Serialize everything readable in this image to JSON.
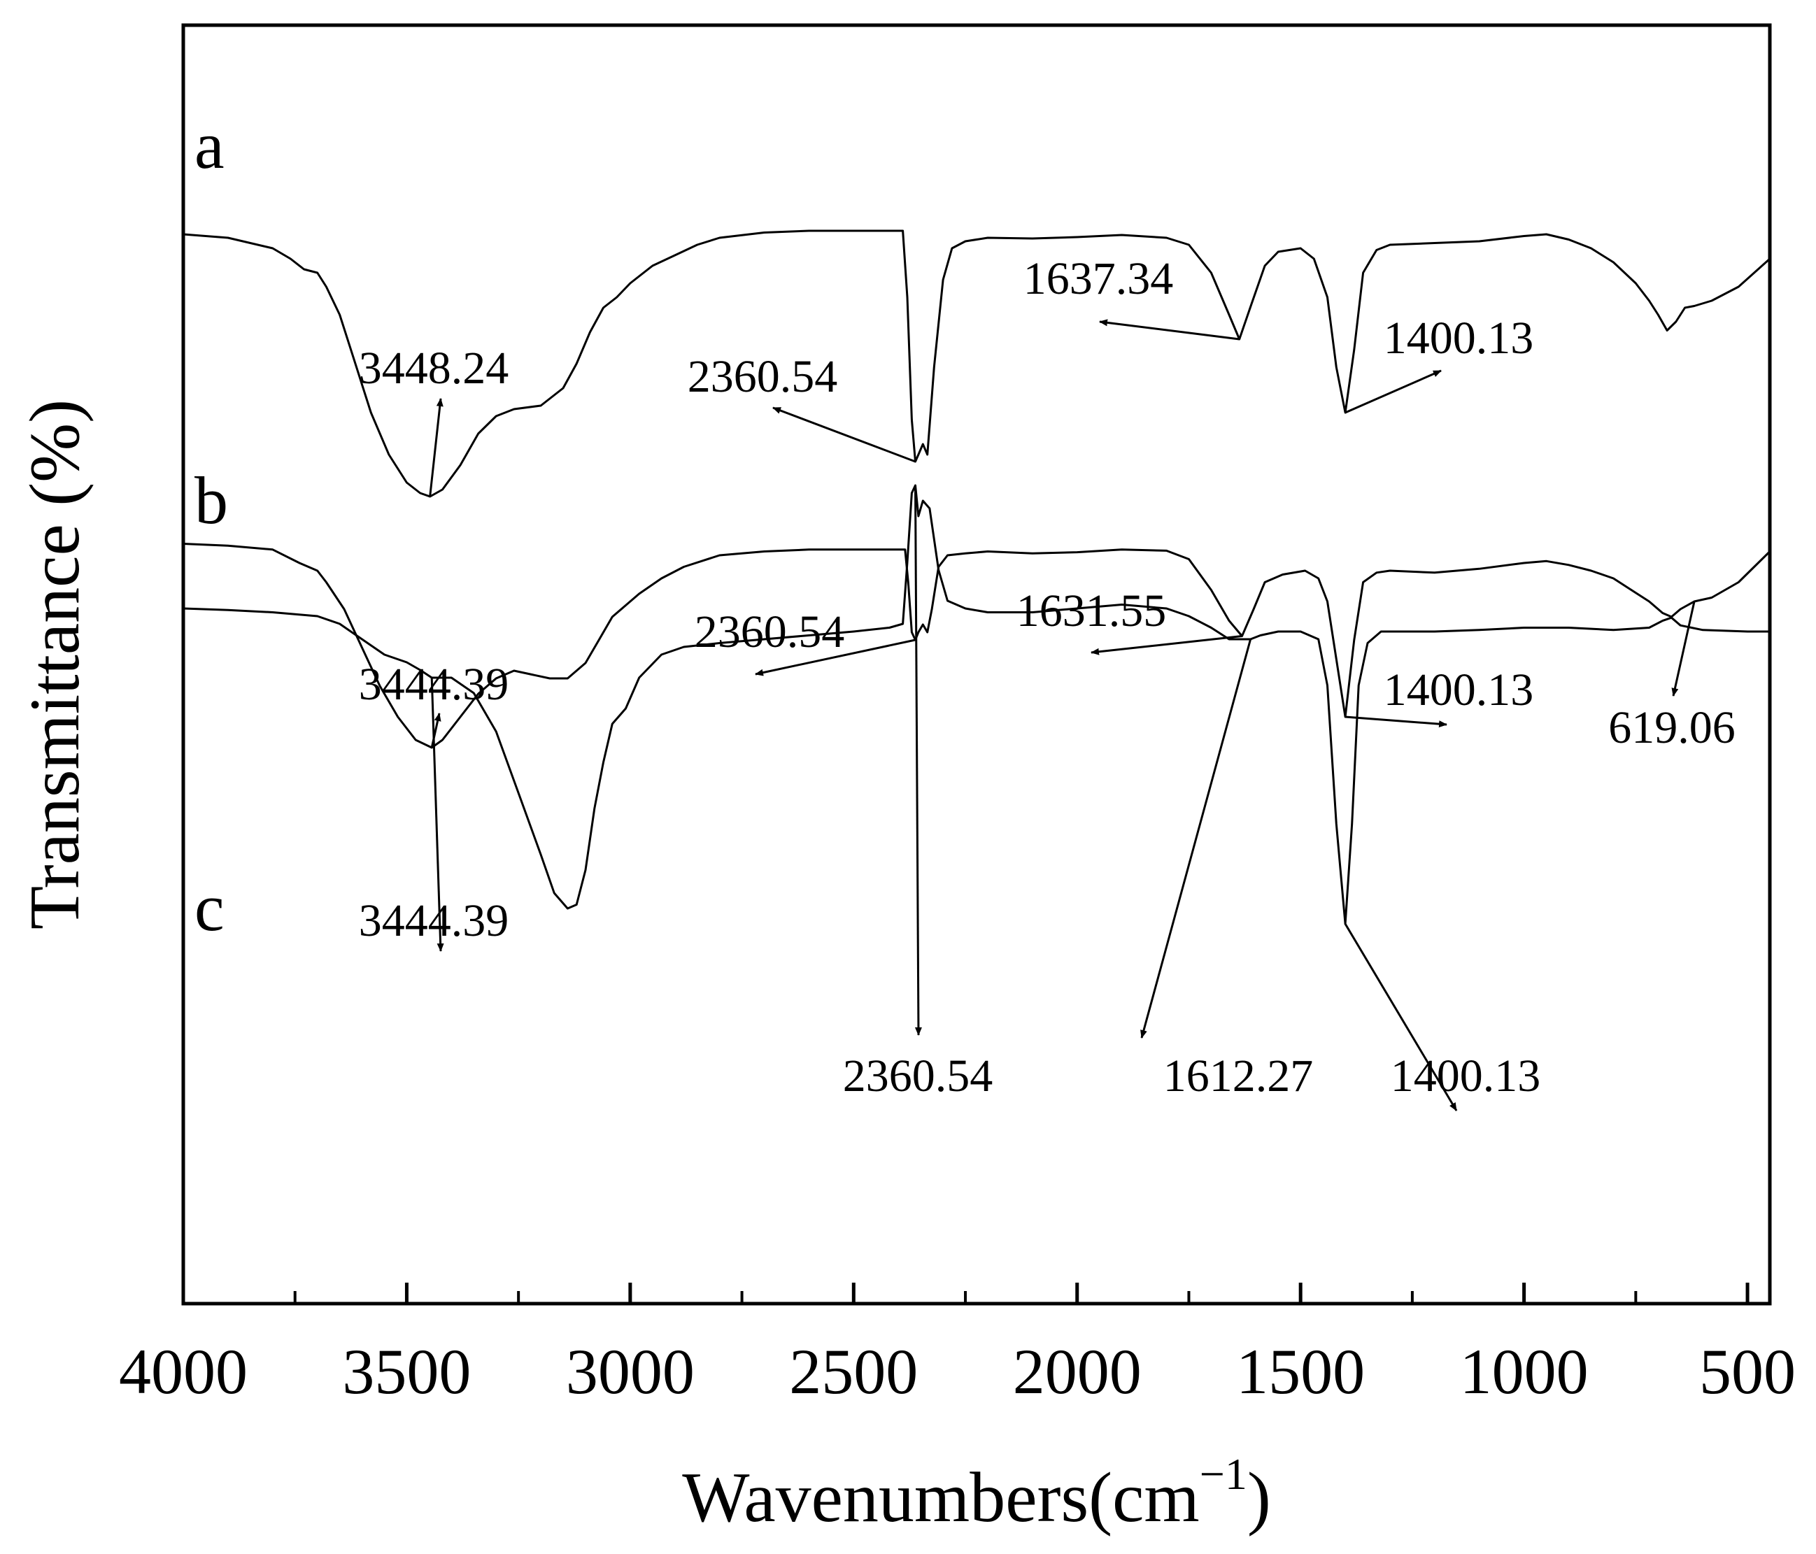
{
  "chart_data": {
    "type": "line",
    "xlabel": "Wavenumbers(cm",
    "xlabel_superscript": "−1",
    "xlabel_suffix": ")",
    "ylabel": "Transmittance (%)",
    "xlim": [
      4000,
      450
    ],
    "x_reversed": true,
    "x_ticks": [
      4000,
      3500,
      3000,
      2500,
      2000,
      1500,
      1000,
      500
    ],
    "x_tick_labels": [
      "4000",
      "3500",
      "3000",
      "2500",
      "2000",
      "1500",
      "1000",
      "500"
    ],
    "grid": false,
    "line_color": "#000000",
    "series": [
      {
        "name": "a",
        "points": [
          [
            4000,
            0.93
          ],
          [
            3900,
            0.92
          ],
          [
            3800,
            0.89
          ],
          [
            3760,
            0.86
          ],
          [
            3730,
            0.83
          ],
          [
            3700,
            0.82
          ],
          [
            3680,
            0.78
          ],
          [
            3650,
            0.7
          ],
          [
            3620,
            0.58
          ],
          [
            3580,
            0.42
          ],
          [
            3540,
            0.3
          ],
          [
            3500,
            0.22
          ],
          [
            3470,
            0.19
          ],
          [
            3448,
            0.18
          ],
          [
            3420,
            0.2
          ],
          [
            3380,
            0.27
          ],
          [
            3340,
            0.36
          ],
          [
            3300,
            0.41
          ],
          [
            3260,
            0.43
          ],
          [
            3200,
            0.44
          ],
          [
            3150,
            0.49
          ],
          [
            3120,
            0.56
          ],
          [
            3090,
            0.65
          ],
          [
            3060,
            0.72
          ],
          [
            3030,
            0.75
          ],
          [
            3000,
            0.79
          ],
          [
            2950,
            0.84
          ],
          [
            2900,
            0.87
          ],
          [
            2850,
            0.9
          ],
          [
            2800,
            0.92
          ],
          [
            2700,
            0.935
          ],
          [
            2600,
            0.94
          ],
          [
            2450,
            0.94
          ],
          [
            2390,
            0.94
          ],
          [
            2380,
            0.75
          ],
          [
            2370,
            0.4
          ],
          [
            2362,
            0.28
          ],
          [
            2355,
            0.3
          ],
          [
            2345,
            0.33
          ],
          [
            2335,
            0.3
          ],
          [
            2320,
            0.55
          ],
          [
            2300,
            0.8
          ],
          [
            2280,
            0.89
          ],
          [
            2250,
            0.91
          ],
          [
            2200,
            0.92
          ],
          [
            2100,
            0.918
          ],
          [
            2000,
            0.922
          ],
          [
            1900,
            0.928
          ],
          [
            1800,
            0.92
          ],
          [
            1750,
            0.9
          ],
          [
            1700,
            0.82
          ],
          [
            1660,
            0.7
          ],
          [
            1637,
            0.63
          ],
          [
            1610,
            0.73
          ],
          [
            1580,
            0.84
          ],
          [
            1550,
            0.88
          ],
          [
            1500,
            0.89
          ],
          [
            1470,
            0.86
          ],
          [
            1440,
            0.75
          ],
          [
            1420,
            0.55
          ],
          [
            1400,
            0.42
          ],
          [
            1380,
            0.6
          ],
          [
            1360,
            0.82
          ],
          [
            1330,
            0.885
          ],
          [
            1300,
            0.9
          ],
          [
            1200,
            0.905
          ],
          [
            1100,
            0.91
          ],
          [
            1000,
            0.925
          ],
          [
            950,
            0.93
          ],
          [
            900,
            0.915
          ],
          [
            850,
            0.89
          ],
          [
            800,
            0.85
          ],
          [
            750,
            0.79
          ],
          [
            720,
            0.74
          ],
          [
            700,
            0.7
          ],
          [
            680,
            0.655
          ],
          [
            660,
            0.68
          ],
          [
            640,
            0.72
          ],
          [
            619,
            0.725
          ],
          [
            580,
            0.74
          ],
          [
            520,
            0.78
          ],
          [
            450,
            0.86
          ]
        ]
      },
      {
        "name": "b",
        "points": [
          [
            4000,
            0.95
          ],
          [
            3900,
            0.945
          ],
          [
            3800,
            0.935
          ],
          [
            3740,
            0.9
          ],
          [
            3700,
            0.88
          ],
          [
            3680,
            0.85
          ],
          [
            3640,
            0.78
          ],
          [
            3600,
            0.68
          ],
          [
            3560,
            0.58
          ],
          [
            3520,
            0.5
          ],
          [
            3480,
            0.44
          ],
          [
            3444,
            0.42
          ],
          [
            3420,
            0.44
          ],
          [
            3380,
            0.5
          ],
          [
            3340,
            0.56
          ],
          [
            3300,
            0.6
          ],
          [
            3260,
            0.62
          ],
          [
            3220,
            0.61
          ],
          [
            3180,
            0.6
          ],
          [
            3140,
            0.6
          ],
          [
            3100,
            0.64
          ],
          [
            3070,
            0.7
          ],
          [
            3040,
            0.76
          ],
          [
            3010,
            0.79
          ],
          [
            2980,
            0.82
          ],
          [
            2930,
            0.86
          ],
          [
            2880,
            0.89
          ],
          [
            2800,
            0.92
          ],
          [
            2700,
            0.93
          ],
          [
            2600,
            0.935
          ],
          [
            2450,
            0.935
          ],
          [
            2385,
            0.935
          ],
          [
            2378,
            0.85
          ],
          [
            2370,
            0.72
          ],
          [
            2362,
            0.7
          ],
          [
            2355,
            0.72
          ],
          [
            2345,
            0.74
          ],
          [
            2335,
            0.72
          ],
          [
            2325,
            0.78
          ],
          [
            2310,
            0.89
          ],
          [
            2290,
            0.92
          ],
          [
            2250,
            0.925
          ],
          [
            2200,
            0.93
          ],
          [
            2100,
            0.925
          ],
          [
            2000,
            0.928
          ],
          [
            1900,
            0.935
          ],
          [
            1800,
            0.932
          ],
          [
            1750,
            0.91
          ],
          [
            1700,
            0.83
          ],
          [
            1660,
            0.75
          ],
          [
            1631,
            0.71
          ],
          [
            1605,
            0.78
          ],
          [
            1580,
            0.85
          ],
          [
            1540,
            0.87
          ],
          [
            1490,
            0.88
          ],
          [
            1460,
            0.86
          ],
          [
            1440,
            0.8
          ],
          [
            1420,
            0.65
          ],
          [
            1400,
            0.5
          ],
          [
            1380,
            0.7
          ],
          [
            1360,
            0.85
          ],
          [
            1330,
            0.875
          ],
          [
            1300,
            0.88
          ],
          [
            1200,
            0.875
          ],
          [
            1100,
            0.885
          ],
          [
            1000,
            0.9
          ],
          [
            950,
            0.905
          ],
          [
            900,
            0.895
          ],
          [
            850,
            0.88
          ],
          [
            800,
            0.86
          ],
          [
            760,
            0.83
          ],
          [
            720,
            0.8
          ],
          [
            690,
            0.77
          ],
          [
            670,
            0.76
          ],
          [
            650,
            0.78
          ],
          [
            619,
            0.8
          ],
          [
            580,
            0.81
          ],
          [
            520,
            0.85
          ],
          [
            450,
            0.93
          ]
        ]
      },
      {
        "name": "c",
        "points": [
          [
            4000,
            0.9
          ],
          [
            3900,
            0.898
          ],
          [
            3800,
            0.895
          ],
          [
            3700,
            0.89
          ],
          [
            3650,
            0.88
          ],
          [
            3600,
            0.86
          ],
          [
            3550,
            0.84
          ],
          [
            3500,
            0.83
          ],
          [
            3470,
            0.82
          ],
          [
            3444,
            0.81
          ],
          [
            3400,
            0.81
          ],
          [
            3350,
            0.79
          ],
          [
            3300,
            0.74
          ],
          [
            3250,
            0.66
          ],
          [
            3200,
            0.58
          ],
          [
            3170,
            0.53
          ],
          [
            3140,
            0.51
          ],
          [
            3120,
            0.515
          ],
          [
            3100,
            0.56
          ],
          [
            3080,
            0.64
          ],
          [
            3060,
            0.7
          ],
          [
            3040,
            0.75
          ],
          [
            3010,
            0.77
          ],
          [
            2980,
            0.81
          ],
          [
            2930,
            0.84
          ],
          [
            2880,
            0.85
          ],
          [
            2800,
            0.855
          ],
          [
            2700,
            0.86
          ],
          [
            2600,
            0.865
          ],
          [
            2500,
            0.87
          ],
          [
            2420,
            0.875
          ],
          [
            2390,
            0.88
          ],
          [
            2380,
            0.96
          ],
          [
            2370,
            1.05
          ],
          [
            2362,
            1.06
          ],
          [
            2355,
            1.02
          ],
          [
            2345,
            1.04
          ],
          [
            2330,
            1.03
          ],
          [
            2310,
            0.95
          ],
          [
            2290,
            0.91
          ],
          [
            2250,
            0.9
          ],
          [
            2200,
            0.895
          ],
          [
            2100,
            0.895
          ],
          [
            2000,
            0.9
          ],
          [
            1900,
            0.905
          ],
          [
            1800,
            0.9
          ],
          [
            1750,
            0.89
          ],
          [
            1700,
            0.875
          ],
          [
            1660,
            0.86
          ],
          [
            1612,
            0.86
          ],
          [
            1590,
            0.865
          ],
          [
            1550,
            0.87
          ],
          [
            1500,
            0.87
          ],
          [
            1460,
            0.86
          ],
          [
            1440,
            0.8
          ],
          [
            1420,
            0.62
          ],
          [
            1400,
            0.49
          ],
          [
            1385,
            0.62
          ],
          [
            1370,
            0.8
          ],
          [
            1350,
            0.855
          ],
          [
            1320,
            0.87
          ],
          [
            1200,
            0.87
          ],
          [
            1100,
            0.872
          ],
          [
            1000,
            0.875
          ],
          [
            900,
            0.875
          ],
          [
            800,
            0.872
          ],
          [
            720,
            0.875
          ],
          [
            690,
            0.884
          ],
          [
            670,
            0.888
          ],
          [
            650,
            0.878
          ],
          [
            600,
            0.872
          ],
          [
            500,
            0.87
          ],
          [
            450,
            0.87
          ]
        ]
      }
    ],
    "annotations": [
      {
        "series": "a",
        "text": "3448.24",
        "x": 3448
      },
      {
        "series": "a",
        "text": "2360.54",
        "x": 2362
      },
      {
        "series": "a",
        "text": "1637.34",
        "x": 1637
      },
      {
        "series": "a",
        "text": "1400.13",
        "x": 1400
      },
      {
        "series": "b",
        "text": "3444.39",
        "x": 3444
      },
      {
        "series": "b",
        "text": "2360.54",
        "x": 2362
      },
      {
        "series": "b",
        "text": "1631.55",
        "x": 1631
      },
      {
        "series": "b",
        "text": "1400.13",
        "x": 1400
      },
      {
        "series": "b",
        "text": "619.06",
        "x": 619
      },
      {
        "series": "c",
        "text": "3444.39",
        "x": 3444
      },
      {
        "series": "c",
        "text": "2360.54",
        "x": 2362
      },
      {
        "series": "c",
        "text": "1612.27",
        "x": 1612
      },
      {
        "series": "c",
        "text": "1400.13",
        "x": 1400
      }
    ]
  }
}
